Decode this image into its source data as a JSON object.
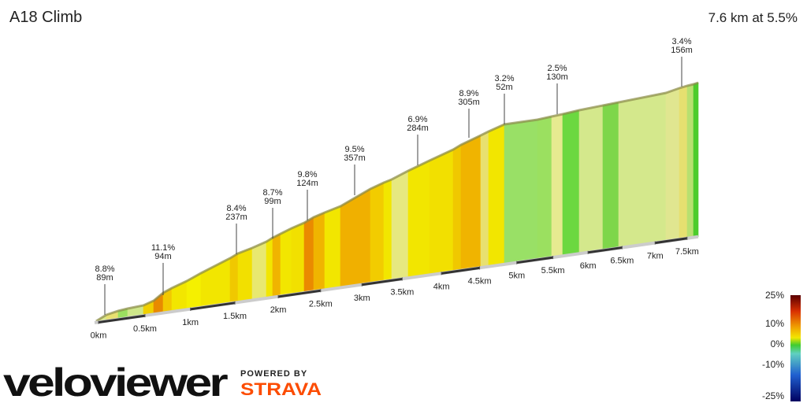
{
  "chart_data": {
    "type": "profile",
    "title": "A18 Climb",
    "summary": "7.6 km at 5.5%",
    "xticks": [
      {
        "value": 0,
        "label": "0km"
      },
      {
        "value": 0.5,
        "label": "0.5km"
      },
      {
        "value": 1,
        "label": "1km"
      },
      {
        "value": 1.5,
        "label": "1.5km"
      },
      {
        "value": 2,
        "label": "2km"
      },
      {
        "value": 2.5,
        "label": "2.5km"
      },
      {
        "value": 3,
        "label": "3km"
      },
      {
        "value": 3.5,
        "label": "3.5km"
      },
      {
        "value": 4,
        "label": "4km"
      },
      {
        "value": 4.5,
        "label": "4.5km"
      },
      {
        "value": 5,
        "label": "5km"
      },
      {
        "value": 5.5,
        "label": "5.5km"
      },
      {
        "value": 6,
        "label": "6km"
      },
      {
        "value": 6.5,
        "label": "6.5km"
      },
      {
        "value": 7,
        "label": "7km"
      },
      {
        "value": 7.5,
        "label": "7.5km"
      }
    ],
    "annotations": [
      {
        "gradient": "8.8%",
        "length": "89m"
      },
      {
        "gradient": "11.1%",
        "length": "94m"
      },
      {
        "gradient": "8.4%",
        "length": "237m"
      },
      {
        "gradient": "8.7%",
        "length": "99m"
      },
      {
        "gradient": "9.8%",
        "length": "124m"
      },
      {
        "gradient": "9.5%",
        "length": "357m"
      },
      {
        "gradient": "6.9%",
        "length": "284m"
      },
      {
        "gradient": "8.9%",
        "length": "305m"
      },
      {
        "gradient": "3.2%",
        "length": "52m"
      },
      {
        "gradient": "2.5%",
        "length": "130m"
      },
      {
        "gradient": "3.4%",
        "length": "156m"
      }
    ],
    "legend_ticks": [
      {
        "value": 25,
        "label": "25%"
      },
      {
        "value": 10,
        "label": "10%"
      },
      {
        "value": 0,
        "label": "0%"
      },
      {
        "value": -10,
        "label": "-10%"
      },
      {
        "value": -25,
        "label": "-25%"
      }
    ],
    "logo": "veloviewer",
    "powered_by": "POWERED BY",
    "strava": "STRAVA"
  }
}
